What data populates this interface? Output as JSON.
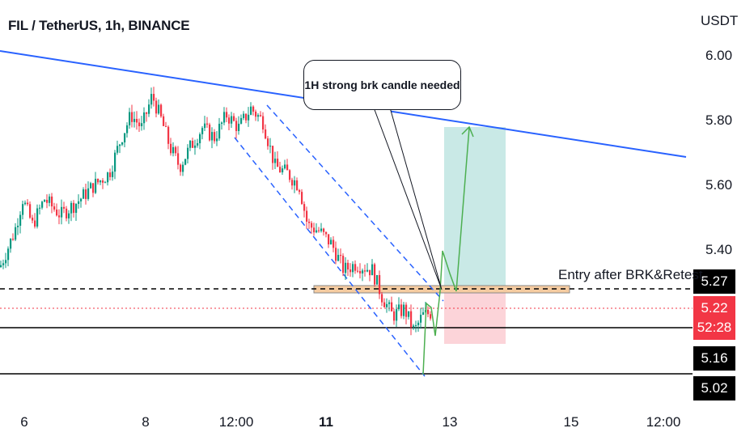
{
  "header": {
    "title": "FIL / TetherUS, 1h, BINANCE",
    "currency": "USDT"
  },
  "price_axis": {
    "ticks": [
      "6.00",
      "5.80",
      "5.60",
      "5.40"
    ],
    "current_price": "5.22",
    "countdown": "52:28",
    "level_tags": [
      "5.27",
      "5.16",
      "5.02"
    ]
  },
  "time_axis": {
    "ticks": [
      "6",
      "8",
      "12:00",
      "11",
      "13",
      "15",
      "12:00"
    ]
  },
  "annotations": {
    "callout": "1H strong brk candle needed",
    "entry_label": "Entry after BRK&Retest"
  },
  "colors": {
    "up": "#089981",
    "down": "#f23645",
    "trendline": "#2962ff",
    "forecast": "#4caf50",
    "target_zone": "#b2dfdb",
    "stop_zone": "#fbcdd2",
    "entry_zone": "#f5cba0"
  },
  "chart_data": {
    "type": "candlestick",
    "symbol": "FIL / TetherUS",
    "interval": "1h",
    "exchange": "BINANCE",
    "ylim": [
      4.95,
      6.1
    ],
    "price_levels": {
      "entry": 5.27,
      "current": 5.22,
      "support": 5.16,
      "low": 5.02
    },
    "trade_setup": {
      "entry": 5.27,
      "target": 5.78,
      "stop": 5.13
    },
    "ohlc_trend_path": [
      {
        "x": 0,
        "y": 5.35
      },
      {
        "x": 18,
        "y": 5.46
      },
      {
        "x": 28,
        "y": 5.56
      },
      {
        "x": 40,
        "y": 5.48
      },
      {
        "x": 55,
        "y": 5.56
      },
      {
        "x": 75,
        "y": 5.51
      },
      {
        "x": 95,
        "y": 5.55
      },
      {
        "x": 115,
        "y": 5.6
      },
      {
        "x": 135,
        "y": 5.64
      },
      {
        "x": 150,
        "y": 5.75
      },
      {
        "x": 162,
        "y": 5.82
      },
      {
        "x": 175,
        "y": 5.78
      },
      {
        "x": 188,
        "y": 5.88
      },
      {
        "x": 200,
        "y": 5.8
      },
      {
        "x": 210,
        "y": 5.72
      },
      {
        "x": 222,
        "y": 5.66
      },
      {
        "x": 235,
        "y": 5.72
      },
      {
        "x": 250,
        "y": 5.78
      },
      {
        "x": 265,
        "y": 5.75
      },
      {
        "x": 280,
        "y": 5.82
      },
      {
        "x": 295,
        "y": 5.78
      },
      {
        "x": 310,
        "y": 5.84
      },
      {
        "x": 325,
        "y": 5.8
      },
      {
        "x": 340,
        "y": 5.66
      },
      {
        "x": 355,
        "y": 5.64
      },
      {
        "x": 370,
        "y": 5.6
      },
      {
        "x": 380,
        "y": 5.48
      },
      {
        "x": 395,
        "y": 5.46
      },
      {
        "x": 410,
        "y": 5.42
      },
      {
        "x": 425,
        "y": 5.34
      },
      {
        "x": 440,
        "y": 5.36
      },
      {
        "x": 460,
        "y": 5.34
      },
      {
        "x": 472,
        "y": 5.26
      },
      {
        "x": 485,
        "y": 5.2
      },
      {
        "x": 500,
        "y": 5.22
      },
      {
        "x": 512,
        "y": 5.15
      },
      {
        "x": 522,
        "y": 5.2
      },
      {
        "x": 534,
        "y": 5.21
      }
    ]
  }
}
